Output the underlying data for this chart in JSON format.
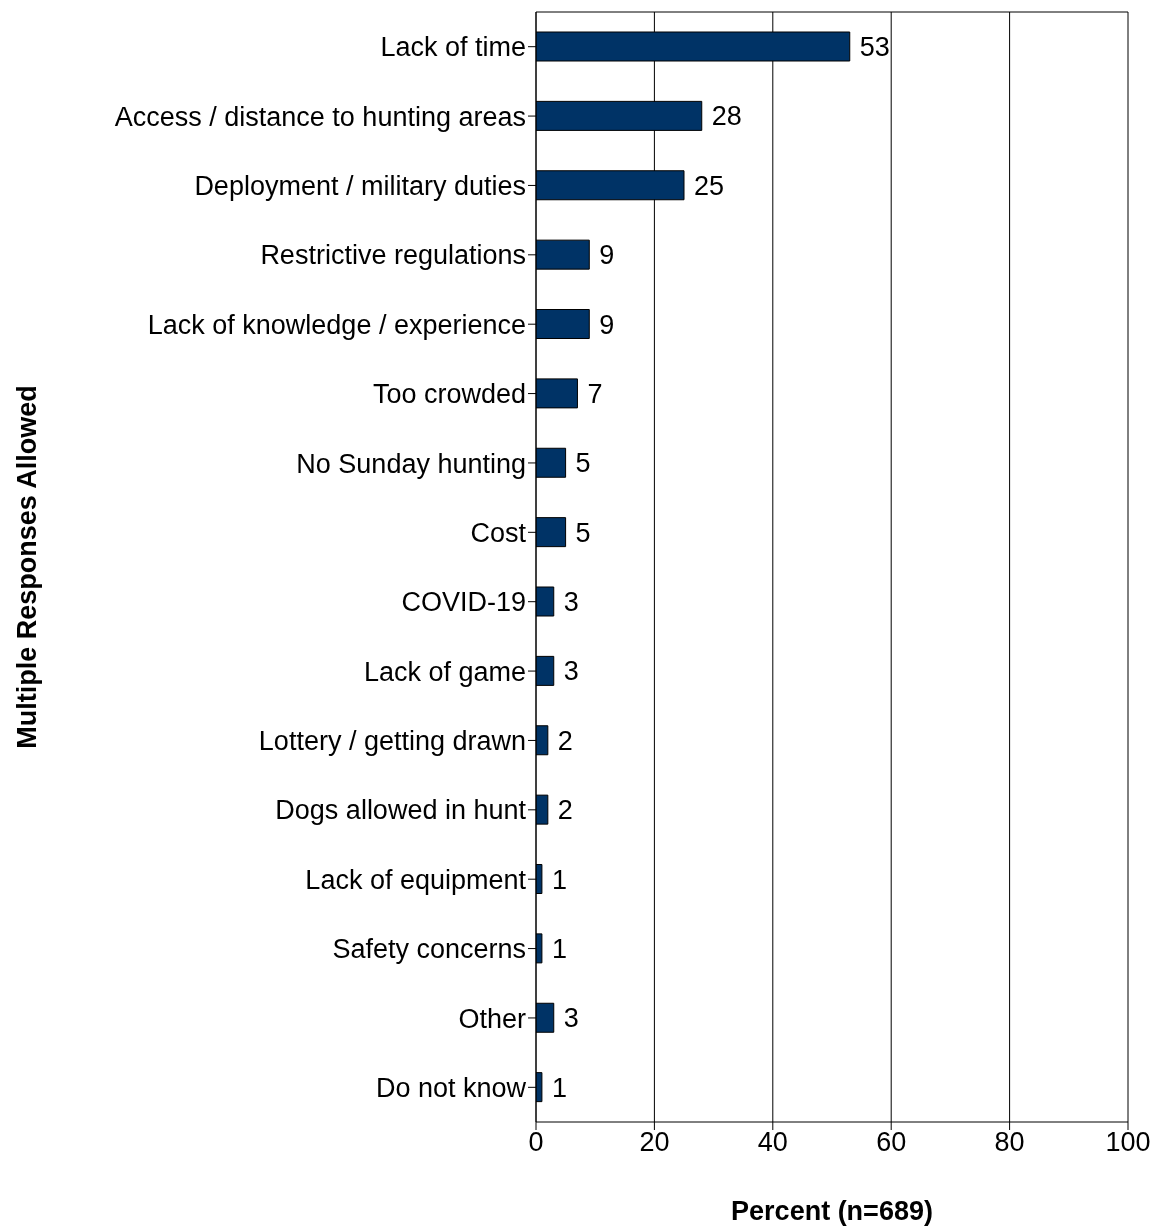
{
  "chart_data": {
    "type": "bar",
    "orientation": "horizontal",
    "xlabel": "Percent (n=689)",
    "ylabel": "Multiple Responses Allowed",
    "categories": [
      "Lack of time",
      "Access / distance to hunting areas",
      "Deployment / military duties",
      "Restrictive regulations",
      "Lack of knowledge / experience",
      "Too crowded",
      "No Sunday hunting",
      "Cost",
      "COVID-19",
      "Lack of game",
      "Lottery / getting drawn",
      "Dogs allowed in hunt",
      "Lack of equipment",
      "Safety concerns",
      "Other",
      "Do not know"
    ],
    "values": [
      53,
      28,
      25,
      9,
      9,
      7,
      5,
      5,
      3,
      3,
      2,
      2,
      1,
      1,
      3,
      1
    ],
    "color": "#003366",
    "xlim": [
      0,
      100
    ],
    "xticks": [
      0,
      20,
      40,
      60,
      80,
      100
    ],
    "grid": "x",
    "data_labels": true
  }
}
